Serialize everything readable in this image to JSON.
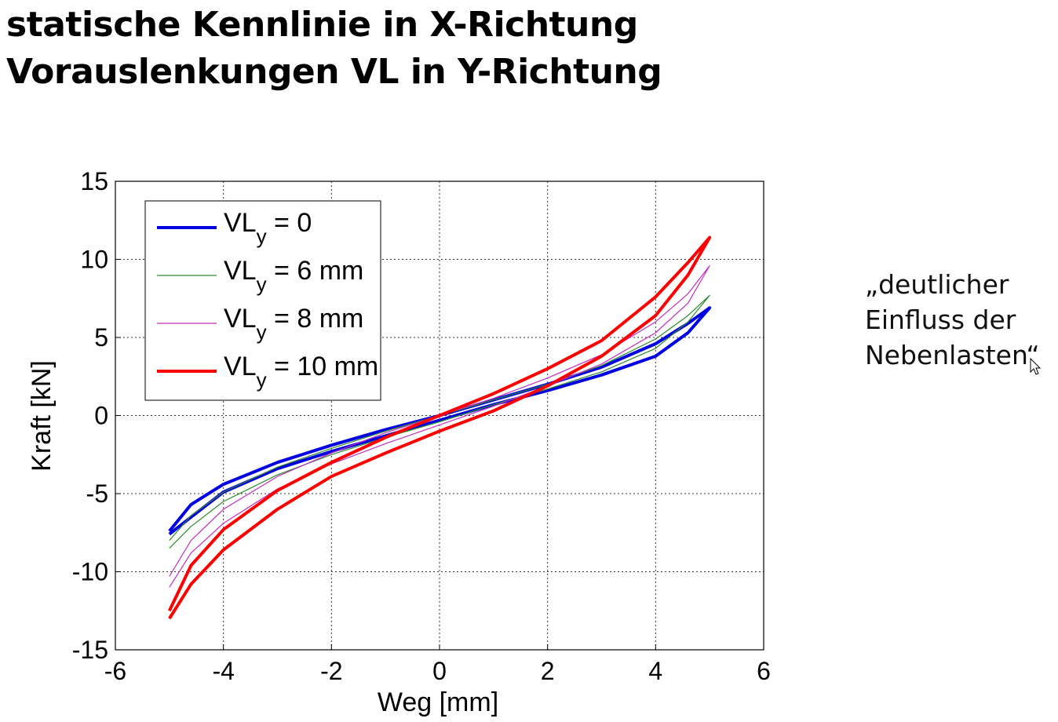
{
  "title": {
    "line1": "statische Kennlinie in X-Richtung",
    "line2": "Vorauslenkungen VL in Y-Richtung"
  },
  "annotation": {
    "line1": "„deutlicher",
    "line2": "Einfluss der",
    "line3": "Nebenlasten“"
  },
  "chart_data": {
    "type": "line",
    "xlabel": "Weg [mm]",
    "ylabel": "Kraft [kN]",
    "xlim": [
      -6,
      6
    ],
    "ylim": [
      -15,
      15
    ],
    "xticks": [
      -6,
      -4,
      -2,
      0,
      2,
      4,
      6
    ],
    "yticks": [
      15,
      10,
      5,
      0,
      -5,
      -10,
      -15
    ],
    "grid": true,
    "legend_position": "top-left",
    "series": [
      {
        "name": "VL_y = 0",
        "legend_main": "VL",
        "legend_sub": "y",
        "legend_rest": " = 0",
        "color": "#0000e0",
        "emphasis": "thick",
        "upper": [
          [
            -5.0,
            -7.4
          ],
          [
            -4.6,
            -5.7
          ],
          [
            -4.0,
            -4.4
          ],
          [
            -3.0,
            -3.0
          ],
          [
            -2.0,
            -1.9
          ],
          [
            -1.0,
            -0.9
          ],
          [
            0.0,
            0.0
          ],
          [
            1.0,
            1.0
          ],
          [
            2.0,
            2.0
          ],
          [
            3.0,
            3.1
          ],
          [
            4.0,
            4.6
          ],
          [
            4.6,
            5.9
          ],
          [
            5.0,
            6.9
          ]
        ],
        "lower": [
          [
            5.0,
            6.9
          ],
          [
            4.6,
            5.3
          ],
          [
            4.0,
            3.8
          ],
          [
            3.0,
            2.6
          ],
          [
            2.0,
            1.6
          ],
          [
            1.0,
            0.7
          ],
          [
            0.0,
            -0.3
          ],
          [
            -1.0,
            -1.3
          ],
          [
            -2.0,
            -2.3
          ],
          [
            -3.0,
            -3.4
          ],
          [
            -4.0,
            -4.9
          ],
          [
            -4.6,
            -6.5
          ],
          [
            -5.0,
            -7.6
          ]
        ]
      },
      {
        "name": "VL_y = 6 mm",
        "legend_main": "VL",
        "legend_sub": "y",
        "legend_rest": " = 6 mm",
        "color": "#2e8b2e",
        "emphasis": "thin",
        "upper": [
          [
            -5.0,
            -8.0
          ],
          [
            -4.6,
            -6.4
          ],
          [
            -4.0,
            -4.9
          ],
          [
            -3.0,
            -3.3
          ],
          [
            -2.0,
            -2.1
          ],
          [
            -1.0,
            -1.0
          ],
          [
            0.0,
            0.0
          ],
          [
            1.0,
            1.0
          ],
          [
            2.0,
            2.0
          ],
          [
            3.0,
            3.2
          ],
          [
            4.0,
            4.9
          ],
          [
            4.6,
            6.4
          ],
          [
            5.0,
            7.7
          ]
        ],
        "lower": [
          [
            5.0,
            7.7
          ],
          [
            4.6,
            6.0
          ],
          [
            4.0,
            4.3
          ],
          [
            3.0,
            2.8
          ],
          [
            2.0,
            1.7
          ],
          [
            1.0,
            0.7
          ],
          [
            0.0,
            -0.4
          ],
          [
            -1.0,
            -1.4
          ],
          [
            -2.0,
            -2.5
          ],
          [
            -3.0,
            -3.8
          ],
          [
            -4.0,
            -5.5
          ],
          [
            -4.6,
            -7.1
          ],
          [
            -5.0,
            -8.5
          ]
        ]
      },
      {
        "name": "VL_y = 8 mm",
        "legend_main": "VL",
        "legend_sub": "y",
        "legend_rest": " = 8 mm",
        "color": "#c030c0",
        "emphasis": "thin",
        "upper": [
          [
            -5.0,
            -10.3
          ],
          [
            -4.6,
            -8.0
          ],
          [
            -4.0,
            -6.0
          ],
          [
            -3.0,
            -3.9
          ],
          [
            -2.0,
            -2.4
          ],
          [
            -1.0,
            -1.1
          ],
          [
            0.0,
            0.0
          ],
          [
            1.0,
            1.1
          ],
          [
            2.0,
            2.4
          ],
          [
            3.0,
            3.9
          ],
          [
            4.0,
            6.0
          ],
          [
            4.6,
            7.8
          ],
          [
            5.0,
            9.6
          ]
        ],
        "lower": [
          [
            5.0,
            9.6
          ],
          [
            4.6,
            7.2
          ],
          [
            4.0,
            5.3
          ],
          [
            3.0,
            3.3
          ],
          [
            2.0,
            1.9
          ],
          [
            1.0,
            0.6
          ],
          [
            0.0,
            -0.6
          ],
          [
            -1.0,
            -1.8
          ],
          [
            -2.0,
            -3.1
          ],
          [
            -3.0,
            -4.7
          ],
          [
            -4.0,
            -6.9
          ],
          [
            -4.6,
            -8.8
          ],
          [
            -5.0,
            -11.0
          ]
        ]
      },
      {
        "name": "VL_y = 10 mm",
        "legend_main": "VL",
        "legend_sub": "y",
        "legend_rest": " = 10 mm",
        "color": "#ff0000",
        "emphasis": "thick",
        "upper": [
          [
            -5.0,
            -12.5
          ],
          [
            -4.6,
            -9.6
          ],
          [
            -4.0,
            -7.3
          ],
          [
            -3.0,
            -4.8
          ],
          [
            -2.0,
            -3.0
          ],
          [
            -1.0,
            -1.4
          ],
          [
            0.0,
            0.0
          ],
          [
            1.0,
            1.4
          ],
          [
            2.0,
            3.0
          ],
          [
            3.0,
            4.8
          ],
          [
            4.0,
            7.6
          ],
          [
            4.6,
            9.8
          ],
          [
            5.0,
            11.4
          ]
        ],
        "lower": [
          [
            5.0,
            11.4
          ],
          [
            4.6,
            9.0
          ],
          [
            4.0,
            6.4
          ],
          [
            3.0,
            3.8
          ],
          [
            2.0,
            1.9
          ],
          [
            1.0,
            0.3
          ],
          [
            0.0,
            -1.0
          ],
          [
            -1.0,
            -2.4
          ],
          [
            -2.0,
            -3.9
          ],
          [
            -3.0,
            -6.0
          ],
          [
            -4.0,
            -8.6
          ],
          [
            -4.6,
            -10.8
          ],
          [
            -5.0,
            -13.0
          ]
        ]
      }
    ]
  }
}
